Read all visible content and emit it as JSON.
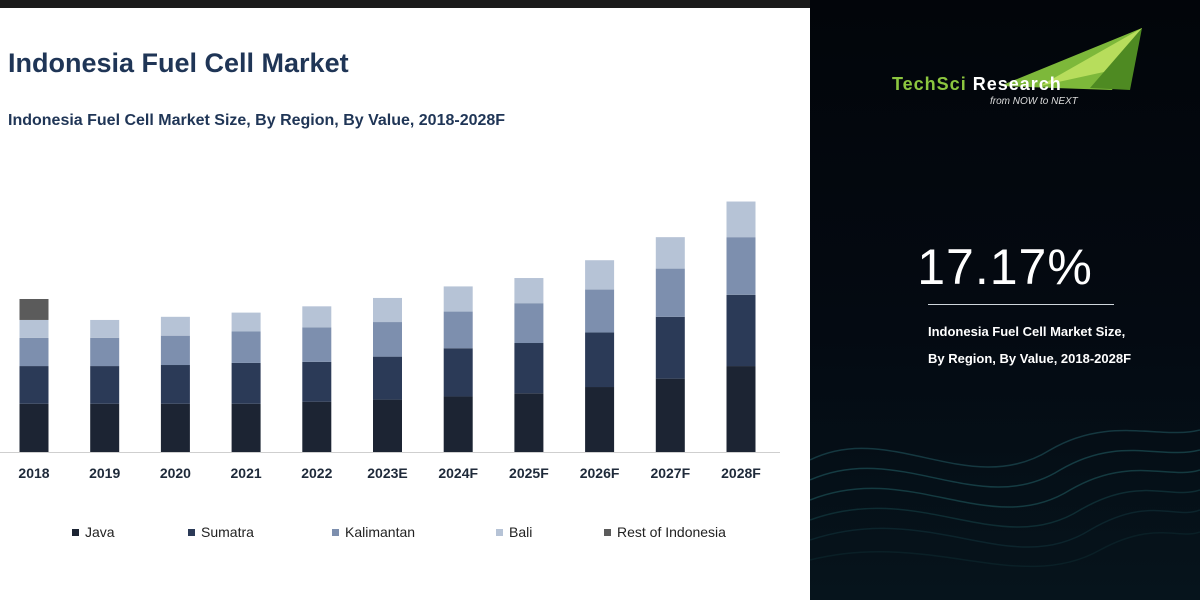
{
  "title": "Indonesia Fuel Cell Market",
  "subtitle": "Indonesia Fuel Cell Market Size, By Region, By Value, 2018-2028F",
  "chart_data": {
    "type": "bar",
    "stacked": true,
    "title": "Indonesia Fuel Cell Market Size, By Region, By Value, 2018-2028F",
    "xlabel": "",
    "ylabel": "",
    "categories": [
      "2018",
      "2019",
      "2020",
      "2021",
      "2022",
      "2023E",
      "2024F",
      "2025F",
      "2026F",
      "2027F",
      "2028F"
    ],
    "series": [
      {
        "name": "Java",
        "values": [
          46,
          46,
          46,
          46,
          48,
          50,
          53,
          56,
          62,
          70,
          82
        ]
      },
      {
        "name": "Sumatra",
        "values": [
          36,
          36,
          37,
          39,
          38,
          41,
          46,
          48,
          52,
          59,
          68
        ]
      },
      {
        "name": "Kalimantan",
        "values": [
          27,
          27,
          28,
          30,
          33,
          33,
          35,
          38,
          41,
          46,
          55
        ]
      },
      {
        "name": "Bali",
        "values": [
          17,
          17,
          18,
          18,
          20,
          23,
          24,
          24,
          28,
          30,
          34
        ]
      },
      {
        "name": "Rest of Indonesia",
        "values": [
          20,
          0,
          0,
          0,
          0,
          0,
          0,
          0,
          0,
          0,
          0
        ]
      }
    ],
    "ylim": [
      0,
      250
    ],
    "grid": false,
    "legend_position": "bottom",
    "colors": [
      "#1c2433",
      "#2b3a57",
      "#7d8fae",
      "#b6c3d6",
      "#5b5b5b"
    ]
  },
  "legend": {
    "items": [
      {
        "label": "Java",
        "color": "#1c2433"
      },
      {
        "label": "Sumatra",
        "color": "#2b3a57"
      },
      {
        "label": "Kalimantan",
        "color": "#7d8fae"
      },
      {
        "label": "Bali",
        "color": "#b6c3d6"
      },
      {
        "label": "Rest of Indonesia",
        "color": "#5b5b5b"
      }
    ]
  },
  "brand": {
    "name_part1": "TechSci",
    "name_part2": " Research",
    "tagline": "from NOW to NEXT",
    "accent_color": "#8cc63f"
  },
  "highlight": {
    "cagr": "17.17%",
    "line1": "Indonesia Fuel Cell Market Size,",
    "line2": "By Region, By Value, 2018-2028F"
  }
}
